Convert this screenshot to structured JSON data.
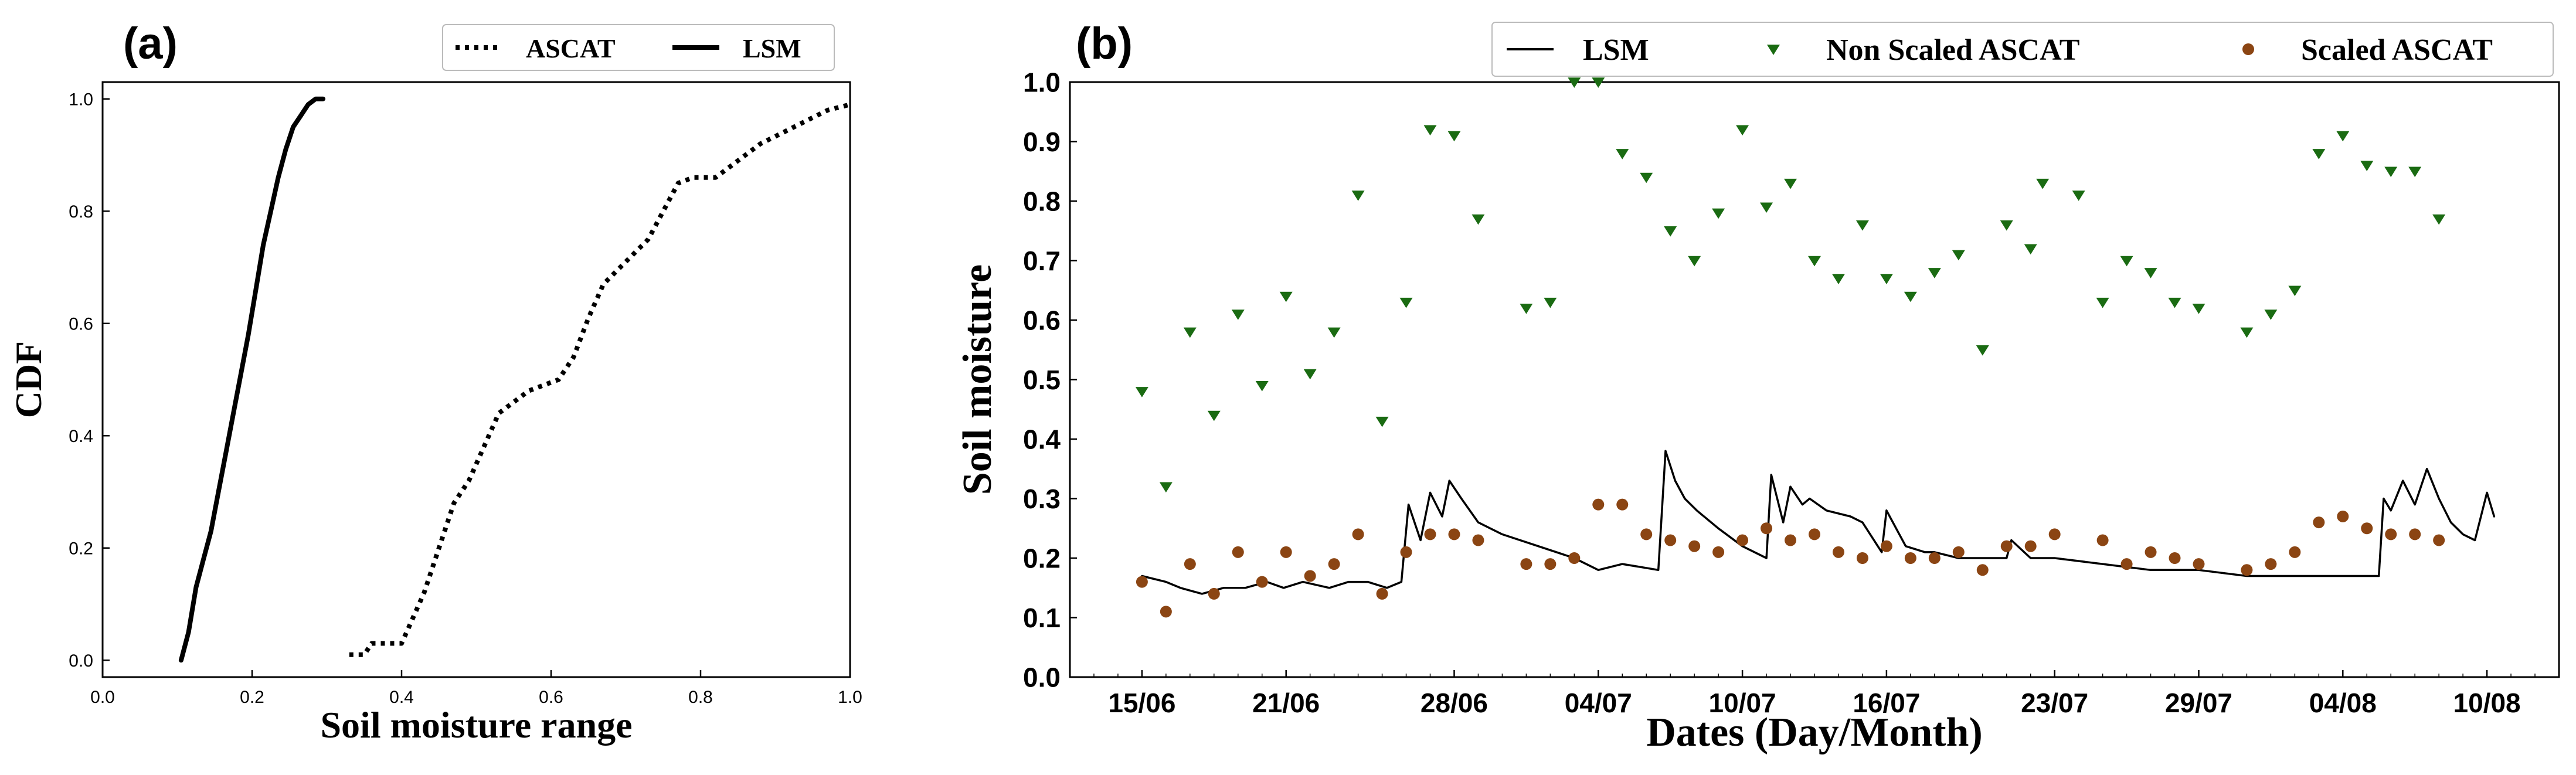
{
  "chart_data": [
    {
      "panel": "(a)",
      "type": "line",
      "title": "",
      "xlabel": "Soil moisture range",
      "ylabel": "CDF",
      "xlim": [
        0.0,
        1.0
      ],
      "ylim": [
        -0.03,
        1.03
      ],
      "x_ticks": [
        0.0,
        0.2,
        0.4,
        0.6,
        0.8,
        1.0
      ],
      "x_tick_labels": [
        "0.0",
        "0.2",
        "0.4",
        "0.6",
        "0.8",
        "1.0"
      ],
      "y_ticks": [
        0.0,
        0.2,
        0.4,
        0.6,
        0.8,
        1.0
      ],
      "y_tick_labels": [
        "0.0",
        "0.2",
        "0.4",
        "0.6",
        "0.8",
        "1.0"
      ],
      "grid": false,
      "legend_position": "top-right",
      "series": [
        {
          "name": "ASCAT",
          "style": "dotted",
          "color": "#000000",
          "x": [
            0.33,
            0.35,
            0.36,
            0.4,
            0.41,
            0.43,
            0.45,
            0.47,
            0.49,
            0.51,
            0.53,
            0.55,
            0.57,
            0.59,
            0.61,
            0.63,
            0.65,
            0.67,
            0.7,
            0.73,
            0.75,
            0.77,
            0.79,
            0.82,
            0.85,
            0.88,
            0.91,
            0.94,
            0.97,
            1.0
          ],
          "y": [
            0.01,
            0.01,
            0.03,
            0.03,
            0.06,
            0.12,
            0.2,
            0.28,
            0.32,
            0.38,
            0.44,
            0.46,
            0.48,
            0.49,
            0.5,
            0.54,
            0.61,
            0.67,
            0.71,
            0.75,
            0.8,
            0.85,
            0.86,
            0.86,
            0.89,
            0.92,
            0.94,
            0.96,
            0.98,
            0.99
          ]
        },
        {
          "name": "LSM",
          "style": "solid",
          "color": "#000000",
          "x": [
            0.105,
            0.115,
            0.125,
            0.135,
            0.145,
            0.155,
            0.165,
            0.175,
            0.185,
            0.195,
            0.205,
            0.215,
            0.225,
            0.235,
            0.245,
            0.255,
            0.265,
            0.275,
            0.285,
            0.295
          ],
          "y": [
            0.0,
            0.05,
            0.13,
            0.18,
            0.23,
            0.3,
            0.37,
            0.44,
            0.51,
            0.58,
            0.66,
            0.74,
            0.8,
            0.86,
            0.91,
            0.95,
            0.97,
            0.99,
            1.0,
            1.0
          ]
        }
      ]
    },
    {
      "panel": "(b)",
      "type": "scatter",
      "title": "",
      "xlabel": "Dates (Day/Month)",
      "ylabel": "Soil moisture",
      "x_unit": "days since 15/06",
      "xlim": [
        -3,
        59
      ],
      "ylim": [
        0.0,
        1.0
      ],
      "x_ticks": [
        0,
        6,
        13,
        19,
        25,
        31,
        38,
        44,
        50,
        56
      ],
      "x_tick_labels": [
        "15/06",
        "21/06",
        "28/06",
        "04/07",
        "10/07",
        "16/07",
        "23/07",
        "29/07",
        "04/08",
        "10/08"
      ],
      "y_ticks": [
        0.0,
        0.1,
        0.2,
        0.3,
        0.4,
        0.5,
        0.6,
        0.7,
        0.8,
        0.9,
        1.0
      ],
      "y_tick_labels": [
        "0.0",
        "0.1",
        "0.2",
        "0.3",
        "0.4",
        "0.5",
        "0.6",
        "0.7",
        "0.8",
        "0.9",
        "1.0"
      ],
      "grid": false,
      "legend_position": "top",
      "series": [
        {
          "name": "LSM",
          "kind": "line",
          "color": "#000000",
          "x": [
            0.0,
            1.0,
            1.6,
            2.5,
            3.4,
            4.3,
            5.2,
            5.9,
            6.7,
            7.8,
            8.6,
            9.4,
            10.2,
            10.8,
            11.1,
            11.6,
            12.0,
            12.5,
            12.8,
            13.3,
            14.0,
            15.0,
            16.5,
            18.0,
            19.0,
            20.0,
            21.5,
            21.8,
            22.2,
            22.6,
            23.1,
            24.0,
            25.0,
            26.0,
            26.2,
            26.7,
            27.0,
            27.5,
            27.8,
            28.5,
            29.5,
            30.0,
            30.8,
            31.0,
            31.4,
            31.8,
            32.6,
            33.0,
            34.0,
            35.0,
            36.0,
            36.2,
            37.0,
            38.0,
            40.0,
            42.0,
            44.0,
            46.0,
            48.0,
            50.5,
            51.5,
            51.7,
            52.0,
            52.5,
            53.0,
            53.5,
            54.0,
            54.5,
            55.0,
            55.5,
            56.0,
            56.3
          ],
          "y": [
            0.17,
            0.16,
            0.15,
            0.14,
            0.15,
            0.15,
            0.16,
            0.15,
            0.16,
            0.15,
            0.16,
            0.16,
            0.15,
            0.16,
            0.29,
            0.23,
            0.31,
            0.27,
            0.33,
            0.3,
            0.26,
            0.24,
            0.22,
            0.2,
            0.18,
            0.19,
            0.18,
            0.38,
            0.33,
            0.3,
            0.28,
            0.25,
            0.22,
            0.2,
            0.34,
            0.26,
            0.32,
            0.29,
            0.3,
            0.28,
            0.27,
            0.26,
            0.21,
            0.28,
            0.25,
            0.22,
            0.21,
            0.21,
            0.2,
            0.2,
            0.2,
            0.23,
            0.2,
            0.2,
            0.19,
            0.18,
            0.18,
            0.17,
            0.17,
            0.17,
            0.17,
            0.3,
            0.28,
            0.33,
            0.29,
            0.35,
            0.3,
            0.26,
            0.24,
            0.23,
            0.31,
            0.27
          ]
        },
        {
          "name": "Non Scaled ASCAT",
          "kind": "marker-triangle-down",
          "color": "#1a6b12",
          "x": [
            0,
            1,
            2,
            3,
            4,
            5,
            6,
            7,
            8,
            9,
            10,
            11,
            12,
            13,
            14,
            16,
            17,
            18,
            19,
            20,
            21,
            22,
            23,
            24,
            25,
            26,
            27,
            28,
            29,
            30,
            31,
            32,
            33,
            34,
            35,
            36,
            37,
            37.5,
            39,
            40,
            41,
            42,
            43,
            44,
            46,
            47,
            48,
            49,
            50,
            51,
            52,
            53,
            54
          ],
          "y": [
            0.48,
            0.32,
            0.58,
            0.44,
            0.61,
            0.49,
            0.64,
            0.51,
            0.58,
            0.81,
            0.43,
            0.63,
            0.92,
            0.91,
            0.77,
            0.62,
            0.63,
            1.0,
            1.0,
            0.88,
            0.84,
            0.75,
            0.7,
            0.78,
            0.92,
            0.79,
            0.83,
            0.7,
            0.67,
            0.76,
            0.67,
            0.64,
            0.68,
            0.71,
            0.55,
            0.76,
            0.72,
            0.83,
            0.81,
            0.63,
            0.7,
            0.68,
            0.63,
            0.62,
            0.58,
            0.61,
            0.65,
            0.88,
            0.91,
            0.86,
            0.85,
            0.85,
            0.77
          ]
        },
        {
          "name": "Scaled ASCAT",
          "kind": "marker-circle",
          "color": "#8b4513",
          "x": [
            0,
            1,
            2,
            3,
            4,
            5,
            6,
            7,
            8,
            9,
            10,
            11,
            12,
            13,
            14,
            16,
            17,
            18,
            19,
            20,
            21,
            22,
            23,
            24,
            25,
            26,
            27,
            28,
            29,
            30,
            31,
            32,
            33,
            34,
            35,
            36,
            37,
            38,
            40,
            41,
            42,
            43,
            44,
            46,
            47,
            48,
            49,
            50,
            51,
            52,
            53,
            54
          ],
          "y": [
            0.16,
            0.11,
            0.19,
            0.14,
            0.21,
            0.16,
            0.21,
            0.17,
            0.19,
            0.24,
            0.14,
            0.21,
            0.24,
            0.24,
            0.23,
            0.19,
            0.19,
            0.2,
            0.29,
            0.29,
            0.24,
            0.23,
            0.22,
            0.21,
            0.23,
            0.25,
            0.23,
            0.24,
            0.21,
            0.2,
            0.22,
            0.2,
            0.2,
            0.21,
            0.18,
            0.22,
            0.22,
            0.24,
            0.23,
            0.19,
            0.21,
            0.2,
            0.19,
            0.18,
            0.19,
            0.21,
            0.26,
            0.27,
            0.25,
            0.24,
            0.24,
            0.23
          ]
        }
      ]
    }
  ]
}
